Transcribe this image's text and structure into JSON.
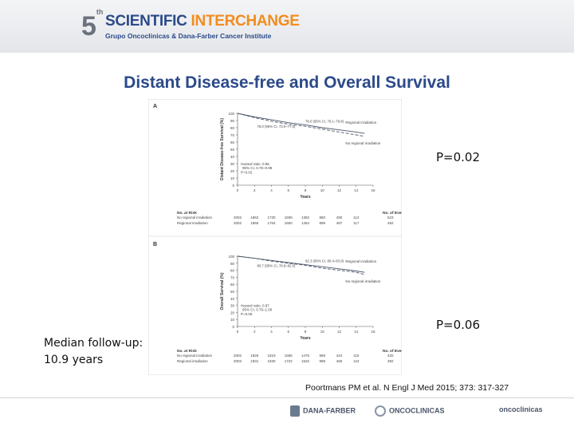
{
  "header": {
    "logo_number": "5",
    "logo_superscript": "th",
    "logo_title_a": "SCIENTIFIC ",
    "logo_title_b": "INTERCHANGE",
    "logo_subtitle": "Grupo Oncoclinicas & Dana-Farber Cancer Institute"
  },
  "slide": {
    "title": "Distant Disease-free and Overall Survival",
    "p_value_a": "P=0.02",
    "p_value_b": "P=0.06",
    "median_followup": "Median follow-up: 10.9 years",
    "citation": "Poortmans PM et al. N Engl J Med 2015; 373: 317-327"
  },
  "footer": {
    "logo1": "DANA-FARBER",
    "logo2": "ONCOCLINICAS",
    "logo3": "oncoclinicas"
  },
  "colors": {
    "accent": "#2b4a8a",
    "orange": "#f28c1e",
    "curve": "#4a5568"
  },
  "chart_data": [
    {
      "type": "line",
      "panel": "A",
      "ylabel": "Distant Disease-free Survival (%)",
      "xlabel": "Years",
      "xlim": [
        0,
        16
      ],
      "ylim": [
        0,
        100
      ],
      "xticks": [
        0,
        2,
        4,
        6,
        8,
        10,
        12,
        14,
        16
      ],
      "yticks": [
        0,
        10,
        20,
        30,
        40,
        50,
        60,
        70,
        80,
        90,
        100
      ],
      "series": [
        {
          "name": "Regional irradiation",
          "x": [
            0,
            2,
            4,
            6,
            8,
            10,
            12,
            14,
            15
          ],
          "y": [
            100,
            95,
            91,
            87,
            84,
            80,
            77,
            74,
            72
          ]
        },
        {
          "name": "No regional irradiation",
          "x": [
            0,
            2,
            4,
            6,
            8,
            10,
            12,
            14,
            15
          ],
          "y": [
            100,
            94,
            89,
            85,
            82,
            78,
            74,
            70,
            68
          ]
        }
      ],
      "annotations": [
        "78.0 (95% CI, 76.1–79.8)",
        "75.0 (95% CI, 73.0–77.0)",
        "Hazard ratio, 0.86",
        "95% CI, 0.76–0.98",
        "P=0.02"
      ],
      "risk_table": {
        "header": "No. at Risk",
        "events_header": "No. of Events",
        "rows": [
          {
            "name": "No regional irradiation",
            "values": [
              2002,
              1862,
              1730,
              1606,
              1382,
              880,
              490,
              113
            ],
            "events": 523
          },
          {
            "name": "Regional irradiation",
            "values": [
              2002,
              1866,
              1764,
              1650,
              1454,
              899,
              487,
              117
            ],
            "events": 482
          }
        ]
      }
    },
    {
      "type": "line",
      "panel": "B",
      "ylabel": "Overall Survival (%)",
      "xlabel": "Years",
      "xlim": [
        0,
        16
      ],
      "ylim": [
        0,
        100
      ],
      "xticks": [
        0,
        2,
        4,
        6,
        8,
        10,
        12,
        14,
        16
      ],
      "yticks": [
        0,
        10,
        20,
        30,
        40,
        50,
        60,
        70,
        80,
        90,
        100
      ],
      "series": [
        {
          "name": "Regional irradiation",
          "x": [
            0,
            2,
            4,
            6,
            8,
            10,
            12,
            14,
            15
          ],
          "y": [
            100,
            97,
            94,
            91,
            88,
            85,
            82,
            79,
            77
          ]
        },
        {
          "name": "No regional irradiation",
          "x": [
            0,
            2,
            4,
            6,
            8,
            10,
            12,
            14,
            15
          ],
          "y": [
            100,
            97,
            93,
            90,
            87,
            83,
            80,
            77,
            74
          ]
        }
      ],
      "annotations": [
        "82.3 (95% CI, 80.4–83.9)",
        "80.7 (95% CI, 78.8–82.5)",
        "Hazard ratio, 0.87",
        "95% CI, 0.76–1.00",
        "P=0.06"
      ],
      "risk_table": {
        "header": "No. at Risk",
        "events_header": "No. of Events",
        "rows": [
          {
            "name": "No regional irradiation",
            "values": [
              2002,
              1926,
              1819,
              1656,
              1475,
              969,
              424,
              115
            ],
            "events": 420
          },
          {
            "name": "Regional irradiation",
            "values": [
              2002,
              1931,
              1830,
              1722,
              1532,
              988,
              466,
              124
            ],
            "events": 392
          }
        ]
      }
    }
  ]
}
